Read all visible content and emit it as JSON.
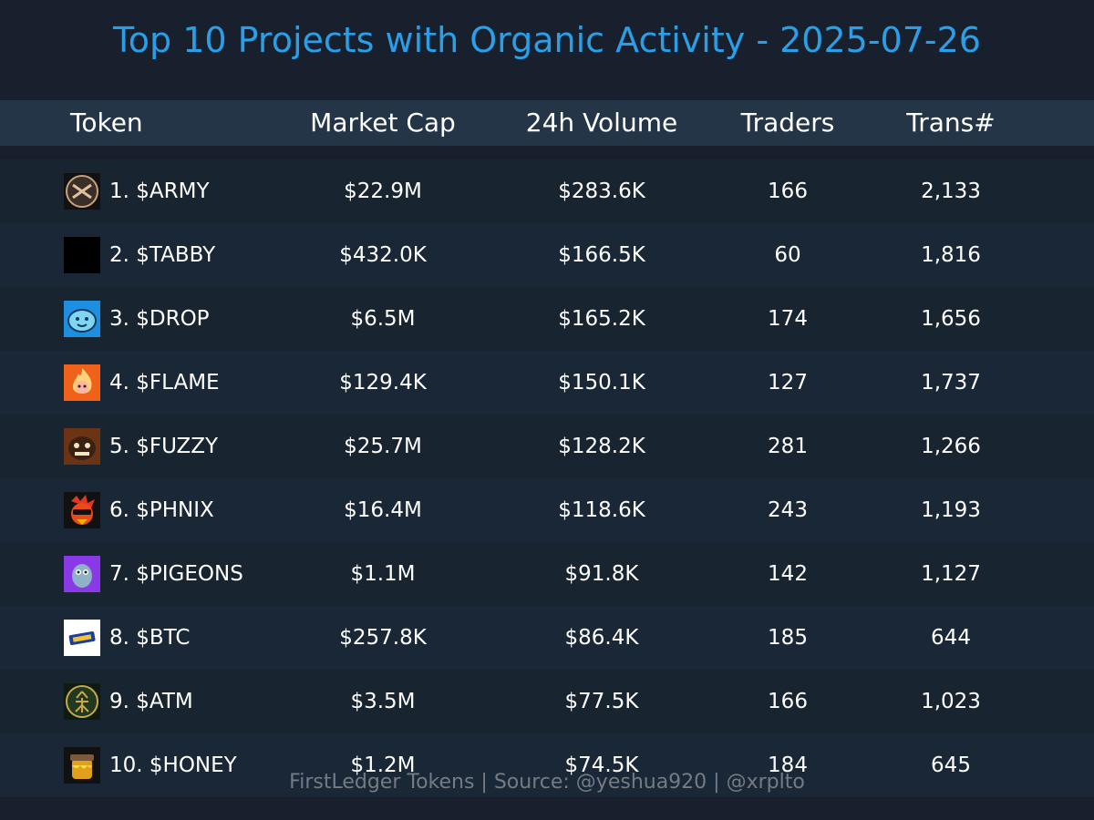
{
  "title": "Top 10 Projects with Organic Activity - 2025-07-26",
  "footer": "FirstLedger Tokens | Source: @yeshua920 | @xrplto",
  "chart_data": {
    "type": "table",
    "columns": [
      "Token",
      "Market Cap",
      "24h Volume",
      "Traders",
      "Trans#"
    ],
    "rows": [
      {
        "token": "1. $ARMY",
        "market_cap": "$22.9M",
        "volume_24h": "$283.6K",
        "traders": "166",
        "transactions": "2,133",
        "icon": "army-logo-icon"
      },
      {
        "token": "2. $TABBY",
        "market_cap": "$432.0K",
        "volume_24h": "$166.5K",
        "traders": "60",
        "transactions": "1,816",
        "icon": "tabby-logo-icon"
      },
      {
        "token": "3. $DROP",
        "market_cap": "$6.5M",
        "volume_24h": "$165.2K",
        "traders": "174",
        "transactions": "1,656",
        "icon": "drop-logo-icon"
      },
      {
        "token": "4. $FLAME",
        "market_cap": "$129.4K",
        "volume_24h": "$150.1K",
        "traders": "127",
        "transactions": "1,737",
        "icon": "flame-logo-icon"
      },
      {
        "token": "5. $FUZZY",
        "market_cap": "$25.7M",
        "volume_24h": "$128.2K",
        "traders": "281",
        "transactions": "1,266",
        "icon": "fuzzy-logo-icon"
      },
      {
        "token": "6. $PHNIX",
        "market_cap": "$16.4M",
        "volume_24h": "$118.6K",
        "traders": "243",
        "transactions": "1,193",
        "icon": "phnix-logo-icon"
      },
      {
        "token": "7. $PIGEONS",
        "market_cap": "$1.1M",
        "volume_24h": "$91.8K",
        "traders": "142",
        "transactions": "1,127",
        "icon": "pigeons-logo-icon"
      },
      {
        "token": "8. $BTC",
        "market_cap": "$257.8K",
        "volume_24h": "$86.4K",
        "traders": "185",
        "transactions": "644",
        "icon": "btc-logo-icon"
      },
      {
        "token": "9. $ATM",
        "market_cap": "$3.5M",
        "volume_24h": "$77.5K",
        "traders": "166",
        "transactions": "1,023",
        "icon": "atm-logo-icon"
      },
      {
        "token": "10. $HONEY",
        "market_cap": "$1.2M",
        "volume_24h": "$74.5K",
        "traders": "184",
        "transactions": "645",
        "icon": "honey-logo-icon"
      }
    ]
  },
  "colors": {
    "background": "#17202c",
    "title": "#2a9fe8",
    "header_band": "#233547",
    "row_even": "#192431",
    "row_odd": "#1a2736",
    "text": "#ffffff",
    "footer": "#8b9097"
  }
}
